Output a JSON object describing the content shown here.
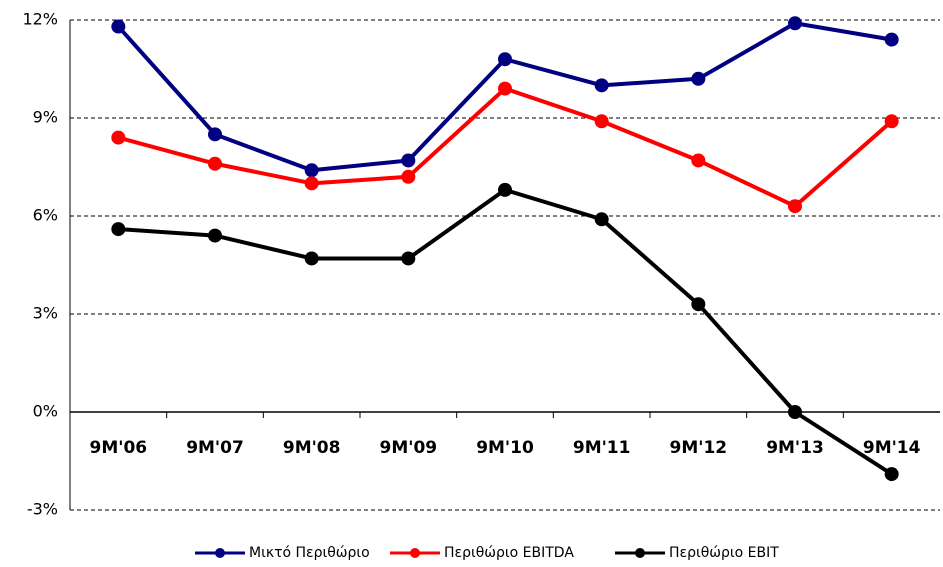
{
  "chart_data": {
    "type": "line",
    "categories": [
      "9M'06",
      "9M'07",
      "9M'08",
      "9M'09",
      "9M'10",
      "9M'11",
      "9M'12",
      "9M'13",
      "9M'14"
    ],
    "series": [
      {
        "name": "Μικτό Περιθώριο",
        "color": "#000080",
        "values": [
          11.8,
          8.5,
          7.4,
          7.7,
          10.8,
          10.0,
          10.2,
          11.9,
          11.4
        ]
      },
      {
        "name": "Περιθώριο EBITDA",
        "color": "#ff0000",
        "values": [
          8.4,
          7.6,
          7.0,
          7.2,
          9.9,
          8.9,
          7.7,
          6.3,
          8.9
        ]
      },
      {
        "name": "Περιθώριο EBIT",
        "color": "#000000",
        "values": [
          5.6,
          5.4,
          4.7,
          4.7,
          6.8,
          5.9,
          3.3,
          0.0,
          -1.9
        ]
      }
    ],
    "ylim": [
      -3,
      12
    ],
    "yticks": [
      {
        "value": -3,
        "label": "-3%"
      },
      {
        "value": 0,
        "label": "0%"
      },
      {
        "value": 3,
        "label": "3%"
      },
      {
        "value": 6,
        "label": "6%"
      },
      {
        "value": 9,
        "label": "9%"
      },
      {
        "value": 12,
        "label": "12%"
      }
    ],
    "grid": true,
    "legend": "bottom"
  }
}
